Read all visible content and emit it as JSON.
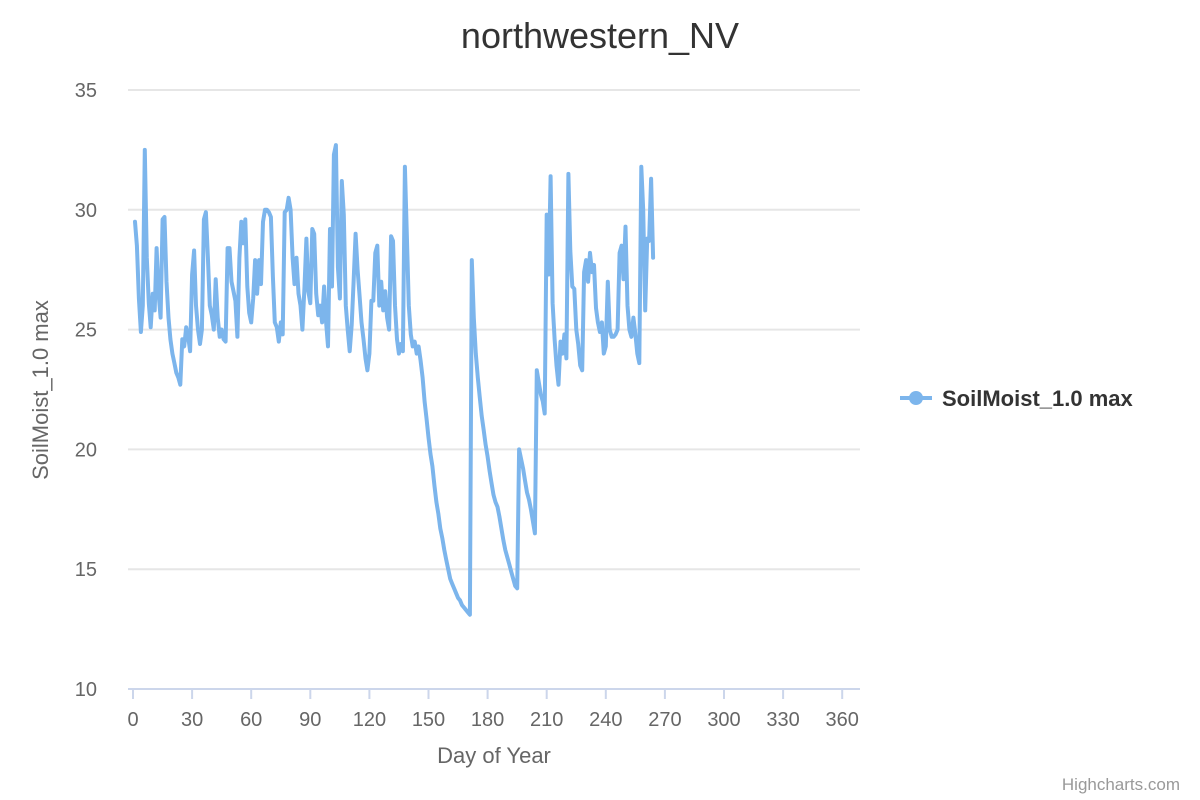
{
  "chart_data": {
    "type": "line",
    "title": "northwestern_NV",
    "xlabel": "Day of Year",
    "ylabel": "SoilMoist_1.0 max",
    "xlim": [
      0,
      366
    ],
    "ylim": [
      10,
      35
    ],
    "x_ticks": [
      0,
      30,
      60,
      90,
      120,
      150,
      180,
      210,
      240,
      270,
      300,
      330,
      360
    ],
    "y_ticks": [
      10,
      15,
      20,
      25,
      30,
      35
    ],
    "grid": "horizontal",
    "legend_position": "right",
    "credits": "Highcharts.com",
    "series": [
      {
        "name": "SoilMoist_1.0 max",
        "color": "#7cb5ec",
        "points": [
          [
            1,
            29.5
          ],
          [
            2,
            28.5
          ],
          [
            3,
            26.3
          ],
          [
            4,
            24.9
          ],
          [
            5,
            26.0
          ],
          [
            6,
            32.5
          ],
          [
            7,
            28.0
          ],
          [
            8,
            26.1
          ],
          [
            9,
            25.1
          ],
          [
            10,
            26.5
          ],
          [
            11,
            25.8
          ],
          [
            12,
            28.4
          ],
          [
            13,
            26.5
          ],
          [
            14,
            25.5
          ],
          [
            15,
            29.6
          ],
          [
            16,
            29.7
          ],
          [
            17,
            27.0
          ],
          [
            18,
            25.5
          ],
          [
            19,
            24.6
          ],
          [
            20,
            24.0
          ],
          [
            21,
            23.6
          ],
          [
            22,
            23.2
          ],
          [
            23,
            23.0
          ],
          [
            24,
            22.7
          ],
          [
            25,
            24.6
          ],
          [
            26,
            24.3
          ],
          [
            27,
            25.1
          ],
          [
            28,
            24.7
          ],
          [
            29,
            24.1
          ],
          [
            30,
            27.3
          ],
          [
            31,
            28.3
          ],
          [
            32,
            26.0
          ],
          [
            33,
            25.0
          ],
          [
            34,
            24.4
          ],
          [
            35,
            25.0
          ],
          [
            36,
            29.6
          ],
          [
            37,
            29.9
          ],
          [
            38,
            28.0
          ],
          [
            39,
            26.0
          ],
          [
            40,
            25.6
          ],
          [
            41,
            25.0
          ],
          [
            42,
            27.1
          ],
          [
            43,
            25.5
          ],
          [
            44,
            24.7
          ],
          [
            45,
            25.0
          ],
          [
            46,
            24.6
          ],
          [
            47,
            24.5
          ],
          [
            48,
            28.4
          ],
          [
            49,
            28.4
          ],
          [
            50,
            27.0
          ],
          [
            51,
            26.6
          ],
          [
            52,
            26.2
          ],
          [
            53,
            24.7
          ],
          [
            54,
            28.0
          ],
          [
            55,
            29.5
          ],
          [
            56,
            28.6
          ],
          [
            57,
            29.6
          ],
          [
            58,
            26.8
          ],
          [
            59,
            25.7
          ],
          [
            60,
            25.3
          ],
          [
            61,
            26.3
          ],
          [
            62,
            27.9
          ],
          [
            63,
            26.5
          ],
          [
            64,
            27.9
          ],
          [
            65,
            26.9
          ],
          [
            66,
            29.5
          ],
          [
            67,
            30.0
          ],
          [
            68,
            30.0
          ],
          [
            69,
            29.9
          ],
          [
            70,
            29.7
          ],
          [
            71,
            27.2
          ],
          [
            72,
            25.3
          ],
          [
            73,
            25.1
          ],
          [
            74,
            24.5
          ],
          [
            75,
            25.3
          ],
          [
            76,
            24.8
          ],
          [
            77,
            29.9
          ],
          [
            78,
            30.0
          ],
          [
            79,
            30.5
          ],
          [
            80,
            30.0
          ],
          [
            81,
            28.0
          ],
          [
            82,
            26.9
          ],
          [
            83,
            28.0
          ],
          [
            84,
            26.5
          ],
          [
            85,
            26.0
          ],
          [
            86,
            25.0
          ],
          [
            87,
            26.7
          ],
          [
            88,
            28.8
          ],
          [
            89,
            26.6
          ],
          [
            90,
            26.1
          ],
          [
            91,
            29.2
          ],
          [
            92,
            29.0
          ],
          [
            93,
            26.5
          ],
          [
            94,
            25.6
          ],
          [
            95,
            26.0
          ],
          [
            96,
            25.3
          ],
          [
            97,
            26.8
          ],
          [
            98,
            25.3
          ],
          [
            99,
            24.3
          ],
          [
            100,
            29.2
          ],
          [
            101,
            26.8
          ],
          [
            102,
            32.3
          ],
          [
            103,
            32.7
          ],
          [
            104,
            27.6
          ],
          [
            105,
            26.3
          ],
          [
            106,
            31.2
          ],
          [
            107,
            29.8
          ],
          [
            108,
            26.0
          ],
          [
            109,
            25.0
          ],
          [
            110,
            24.1
          ],
          [
            111,
            25.2
          ],
          [
            112,
            27.0
          ],
          [
            113,
            29.0
          ],
          [
            114,
            27.5
          ],
          [
            115,
            26.4
          ],
          [
            116,
            25.3
          ],
          [
            117,
            24.6
          ],
          [
            118,
            23.8
          ],
          [
            119,
            23.3
          ],
          [
            120,
            24.0
          ],
          [
            121,
            26.2
          ],
          [
            122,
            26.2
          ],
          [
            123,
            28.2
          ],
          [
            124,
            28.5
          ],
          [
            125,
            26.0
          ],
          [
            126,
            27.0
          ],
          [
            127,
            25.8
          ],
          [
            128,
            26.6
          ],
          [
            129,
            25.5
          ],
          [
            130,
            25.0
          ],
          [
            131,
            28.9
          ],
          [
            132,
            28.7
          ],
          [
            133,
            26.0
          ],
          [
            134,
            24.6
          ],
          [
            135,
            24.0
          ],
          [
            136,
            24.4
          ],
          [
            137,
            24.1
          ],
          [
            138,
            31.8
          ],
          [
            139,
            29.0
          ],
          [
            140,
            26.0
          ],
          [
            141,
            24.8
          ],
          [
            142,
            24.3
          ],
          [
            143,
            24.5
          ],
          [
            144,
            24.0
          ],
          [
            145,
            24.3
          ],
          [
            146,
            23.7
          ],
          [
            147,
            23.0
          ],
          [
            148,
            22.0
          ],
          [
            149,
            21.3
          ],
          [
            150,
            20.5
          ],
          [
            151,
            19.8
          ],
          [
            152,
            19.3
          ],
          [
            153,
            18.5
          ],
          [
            154,
            17.8
          ],
          [
            155,
            17.3
          ],
          [
            156,
            16.7
          ],
          [
            157,
            16.3
          ],
          [
            158,
            15.8
          ],
          [
            159,
            15.4
          ],
          [
            160,
            15.0
          ],
          [
            161,
            14.6
          ],
          [
            162,
            14.4
          ],
          [
            163,
            14.2
          ],
          [
            164,
            14.0
          ],
          [
            165,
            13.8
          ],
          [
            166,
            13.7
          ],
          [
            167,
            13.5
          ],
          [
            168,
            13.4
          ],
          [
            169,
            13.3
          ],
          [
            170,
            13.2
          ],
          [
            171,
            13.1
          ],
          [
            172,
            27.9
          ],
          [
            173,
            25.5
          ],
          [
            174,
            24.0
          ],
          [
            175,
            23.0
          ],
          [
            176,
            22.2
          ],
          [
            177,
            21.4
          ],
          [
            178,
            20.8
          ],
          [
            179,
            20.2
          ],
          [
            180,
            19.7
          ],
          [
            181,
            19.1
          ],
          [
            182,
            18.6
          ],
          [
            183,
            18.1
          ],
          [
            184,
            17.8
          ],
          [
            185,
            17.6
          ],
          [
            186,
            17.2
          ],
          [
            187,
            16.7
          ],
          [
            188,
            16.2
          ],
          [
            189,
            15.8
          ],
          [
            190,
            15.5
          ],
          [
            191,
            15.2
          ],
          [
            192,
            14.9
          ],
          [
            193,
            14.6
          ],
          [
            194,
            14.3
          ],
          [
            195,
            14.2
          ],
          [
            196,
            20.0
          ],
          [
            197,
            19.6
          ],
          [
            198,
            19.2
          ],
          [
            199,
            18.7
          ],
          [
            200,
            18.2
          ],
          [
            201,
            17.9
          ],
          [
            202,
            17.5
          ],
          [
            203,
            17.0
          ],
          [
            204,
            16.5
          ],
          [
            205,
            23.3
          ],
          [
            206,
            22.8
          ],
          [
            207,
            22.3
          ],
          [
            208,
            22.0
          ],
          [
            209,
            21.5
          ],
          [
            210,
            29.8
          ],
          [
            211,
            27.3
          ],
          [
            212,
            31.4
          ],
          [
            213,
            26.1
          ],
          [
            214,
            24.6
          ],
          [
            215,
            23.5
          ],
          [
            216,
            22.7
          ],
          [
            217,
            24.5
          ],
          [
            218,
            24.0
          ],
          [
            219,
            24.8
          ],
          [
            220,
            23.8
          ],
          [
            221,
            31.5
          ],
          [
            222,
            28.3
          ],
          [
            223,
            26.8
          ],
          [
            224,
            26.7
          ],
          [
            225,
            25.0
          ],
          [
            226,
            24.4
          ],
          [
            227,
            23.5
          ],
          [
            228,
            23.3
          ],
          [
            229,
            27.4
          ],
          [
            230,
            27.9
          ],
          [
            231,
            27.0
          ],
          [
            232,
            28.2
          ],
          [
            233,
            27.4
          ],
          [
            234,
            27.7
          ],
          [
            235,
            25.9
          ],
          [
            236,
            25.3
          ],
          [
            237,
            24.9
          ],
          [
            238,
            25.3
          ],
          [
            239,
            24.0
          ],
          [
            240,
            24.3
          ],
          [
            241,
            27.0
          ],
          [
            242,
            25.0
          ],
          [
            243,
            24.7
          ],
          [
            244,
            24.7
          ],
          [
            245,
            24.8
          ],
          [
            246,
            25.0
          ],
          [
            247,
            28.2
          ],
          [
            248,
            28.5
          ],
          [
            249,
            27.1
          ],
          [
            250,
            29.3
          ],
          [
            251,
            26.0
          ],
          [
            252,
            25.0
          ],
          [
            253,
            24.7
          ],
          [
            254,
            25.5
          ],
          [
            255,
            24.8
          ],
          [
            256,
            24.0
          ],
          [
            257,
            23.6
          ],
          [
            258,
            31.8
          ],
          [
            259,
            30.0
          ],
          [
            260,
            25.8
          ],
          [
            261,
            28.8
          ],
          [
            262,
            28.7
          ],
          [
            263,
            31.3
          ],
          [
            264,
            28.0
          ]
        ]
      }
    ]
  }
}
